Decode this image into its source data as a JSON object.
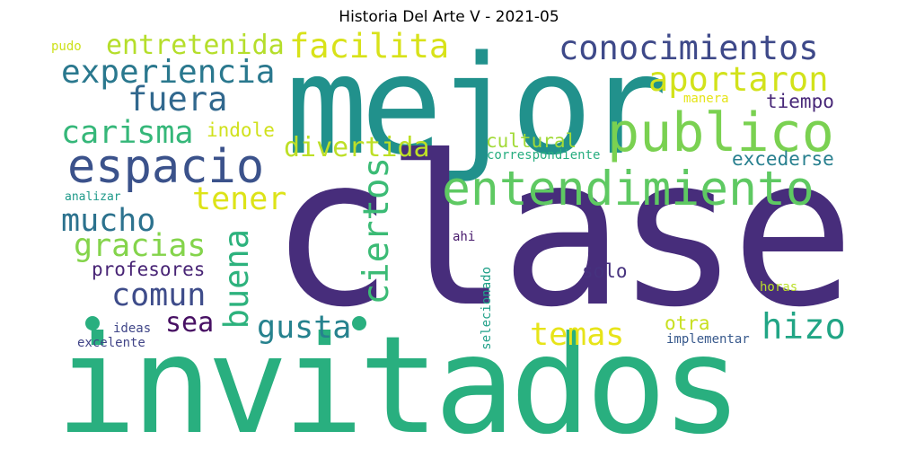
{
  "title": "Historia Del Arte V - 2021-05",
  "words": [
    {
      "text": "mejor",
      "color": "#21918c"
    },
    {
      "text": "clase",
      "color": "#472d7b"
    },
    {
      "text": "invitados",
      "color": "#29af7f"
    },
    {
      "text": "publico",
      "color": "#7ad151"
    },
    {
      "text": "entendimiento",
      "color": "#5ec962"
    },
    {
      "text": "espacio",
      "color": "#3b528b"
    },
    {
      "text": "conocimientos",
      "color": "#3e4989"
    },
    {
      "text": "experiencia",
      "color": "#2a788e"
    },
    {
      "text": "facilita",
      "color": "#d8e219"
    },
    {
      "text": "entretenida",
      "color": "#b5de2b"
    },
    {
      "text": "aportaron",
      "color": "#d2e21b"
    },
    {
      "text": "fuera",
      "color": "#31688e"
    },
    {
      "text": "carisma",
      "color": "#35b779"
    },
    {
      "text": "indole",
      "color": "#d0e11c"
    },
    {
      "text": "divertida",
      "color": "#bddf26"
    },
    {
      "text": "cultural",
      "color": "#a2da37"
    },
    {
      "text": "tiempo",
      "color": "#482878"
    },
    {
      "text": "manera",
      "color": "#e5e419"
    },
    {
      "text": "correspondiente",
      "color": "#28ae80"
    },
    {
      "text": "excederse",
      "color": "#277f8e"
    },
    {
      "text": "tener",
      "color": "#dde318"
    },
    {
      "text": "mucho",
      "color": "#2c728e"
    },
    {
      "text": "ciertos",
      "color": "#3bbb75"
    },
    {
      "text": "gracias",
      "color": "#84d44b"
    },
    {
      "text": "buena",
      "color": "#2db27d"
    },
    {
      "text": "profesores",
      "color": "#482475"
    },
    {
      "text": "comun",
      "color": "#3e4c8a"
    },
    {
      "text": "solo",
      "color": "#46327e"
    },
    {
      "text": "sea",
      "color": "#471063"
    },
    {
      "text": "gusta",
      "color": "#26828e"
    },
    {
      "text": "hizo",
      "color": "#21a585"
    },
    {
      "text": "temas",
      "color": "#e7e419"
    },
    {
      "text": "otra",
      "color": "#c8e020"
    },
    {
      "text": "implementar",
      "color": "#38598c"
    },
    {
      "text": "horas",
      "color": "#bade28"
    },
    {
      "text": "ideas",
      "color": "#404688"
    },
    {
      "text": "excelente",
      "color": "#414487"
    },
    {
      "text": "analizar",
      "color": "#1f9a8a"
    },
    {
      "text": "ahi",
      "color": "#481a6c"
    },
    {
      "text": "selecionado",
      "color": "#1fa088"
    },
    {
      "text": "pudo",
      "color": "#cde11d"
    }
  ]
}
